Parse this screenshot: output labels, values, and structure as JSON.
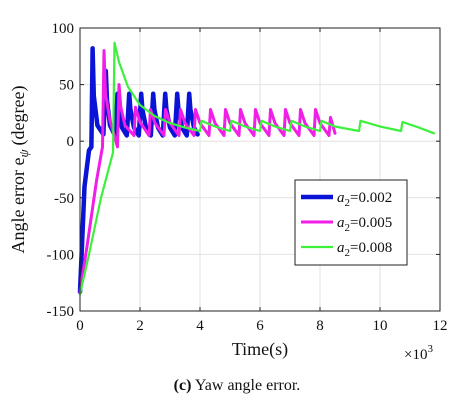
{
  "chart_data": {
    "type": "line",
    "xlabel": "Time(s)",
    "ylabel": "Angle error e",
    "ylabel_subscript": "ψ",
    "ylabel_unit": "(degree)",
    "x_multiplier": "×10",
    "x_multiplier_exp": "3",
    "xlim": [
      0,
      12
    ],
    "ylim": [
      -150,
      100
    ],
    "x_ticks": [
      0,
      2,
      4,
      6,
      8,
      10,
      12
    ],
    "y_ticks": [
      -150,
      -100,
      -50,
      0,
      50,
      100
    ],
    "x_tick_labels": [
      "0",
      "2",
      "4",
      "6",
      "8",
      "10",
      "12"
    ],
    "y_tick_labels": [
      "-150",
      "-100",
      "-50",
      "0",
      "50",
      "100"
    ],
    "grid": true,
    "legend_position": "center-right",
    "series": [
      {
        "name": "a2=0.002",
        "legend_var": "a",
        "legend_sub": "2",
        "legend_val": "=0.002",
        "color": "#0a14d6",
        "width": 4.5,
        "x": [
          0,
          0.15,
          0.3,
          0.38,
          0.42,
          0.46,
          0.58,
          0.78,
          0.86,
          0.9,
          1.0,
          1.17,
          1.25,
          1.29,
          1.4,
          1.56,
          1.64,
          1.68,
          1.8,
          1.96,
          2.04,
          2.08,
          2.2,
          2.36,
          2.44,
          2.48,
          2.6,
          2.76,
          2.84,
          2.88,
          3.0,
          3.16,
          3.24,
          3.28,
          3.4,
          3.56,
          3.64,
          3.68,
          3.8,
          3.92
        ],
        "y": [
          -133,
          -40,
          -8,
          -5,
          82,
          40,
          14,
          6,
          62,
          36,
          14,
          5,
          42,
          28,
          12,
          5,
          42,
          28,
          12,
          5,
          42,
          28,
          12,
          5,
          42,
          28,
          12,
          5,
          42,
          28,
          12,
          5,
          42,
          28,
          12,
          5,
          42,
          28,
          12,
          6
        ]
      },
      {
        "name": "a2=0.005",
        "legend_var": "a",
        "legend_sub": "2",
        "legend_val": "=0.005",
        "color": "#f01ee6",
        "width": 3,
        "x": [
          0,
          0.25,
          0.55,
          0.75,
          0.8,
          0.85,
          1.0,
          1.25,
          1.3,
          1.36,
          1.5,
          1.8,
          1.85,
          2.0,
          2.3,
          2.35,
          2.5,
          2.8,
          2.85,
          3.0,
          3.3,
          3.35,
          3.5,
          3.8,
          3.85,
          4.0,
          4.3,
          4.35,
          4.5,
          4.8,
          4.85,
          5.0,
          5.3,
          5.35,
          5.5,
          5.8,
          5.85,
          6.0,
          6.3,
          6.35,
          6.5,
          6.8,
          6.85,
          7.0,
          7.3,
          7.35,
          7.5,
          7.8,
          7.85,
          8.0,
          8.3,
          8.35,
          8.5
        ],
        "y": [
          -133,
          -90,
          -35,
          -5,
          80,
          42,
          18,
          -5,
          50,
          30,
          14,
          5,
          30,
          17,
          5,
          28,
          16,
          5,
          28,
          16,
          5,
          28,
          16,
          5,
          28,
          16,
          5,
          28,
          16,
          5,
          28,
          16,
          5,
          28,
          16,
          5,
          28,
          16,
          5,
          28,
          16,
          5,
          28,
          16,
          5,
          28,
          16,
          5,
          28,
          16,
          5,
          21,
          7
        ]
      },
      {
        "name": "a2=0.008",
        "legend_var": "a",
        "legend_sub": "2",
        "legend_val": "=0.008",
        "color": "#3cf03c",
        "width": 2.2,
        "x": [
          0,
          0.3,
          0.7,
          1.1,
          1.15,
          1.3,
          1.6,
          2.0,
          2.5,
          3.0,
          3.5,
          4.0,
          4.05,
          4.5,
          5.0,
          5.05,
          5.5,
          6.0,
          6.05,
          6.5,
          7.0,
          7.05,
          7.5,
          8.0,
          8.05,
          8.5,
          9.3,
          9.35,
          10.0,
          10.7,
          10.75,
          11.3,
          11.8
        ],
        "y": [
          -135,
          -100,
          -50,
          -10,
          87,
          70,
          48,
          32,
          22,
          16,
          12,
          9,
          18,
          13,
          9,
          18,
          13,
          9,
          18,
          13,
          9,
          18,
          13,
          9,
          18,
          13,
          9,
          18,
          13,
          9,
          17,
          12,
          7
        ]
      }
    ]
  },
  "caption": {
    "label": "(c)",
    "text": " Yaw angle error."
  }
}
